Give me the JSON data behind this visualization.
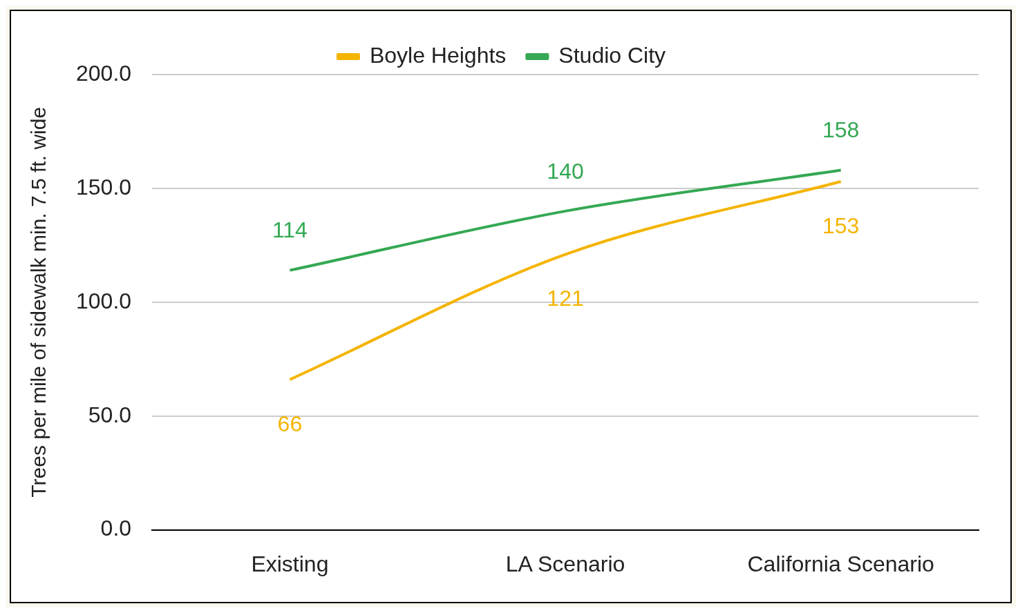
{
  "chart_data": {
    "type": "line",
    "ylabel": "Trees per mile of sidewalk min. 7.5 ft. wide",
    "categories": [
      "Existing",
      "LA Scenario",
      "California Scenario"
    ],
    "series": [
      {
        "name": "Boyle Heights",
        "color": "#f4b400",
        "values": [
          66,
          121,
          153
        ]
      },
      {
        "name": "Studio City",
        "color": "#34a853",
        "values": [
          114,
          140,
          158
        ]
      }
    ],
    "ylim": [
      0,
      200
    ],
    "yticks": [
      {
        "value": 0,
        "label": "0.0"
      },
      {
        "value": 50,
        "label": "50.0"
      },
      {
        "value": 100,
        "label": "100.0"
      },
      {
        "value": 150,
        "label": "150.0"
      },
      {
        "value": 200,
        "label": "200.0"
      }
    ],
    "grid": "y",
    "legend": "top",
    "marker": "none",
    "data_labels": true
  }
}
